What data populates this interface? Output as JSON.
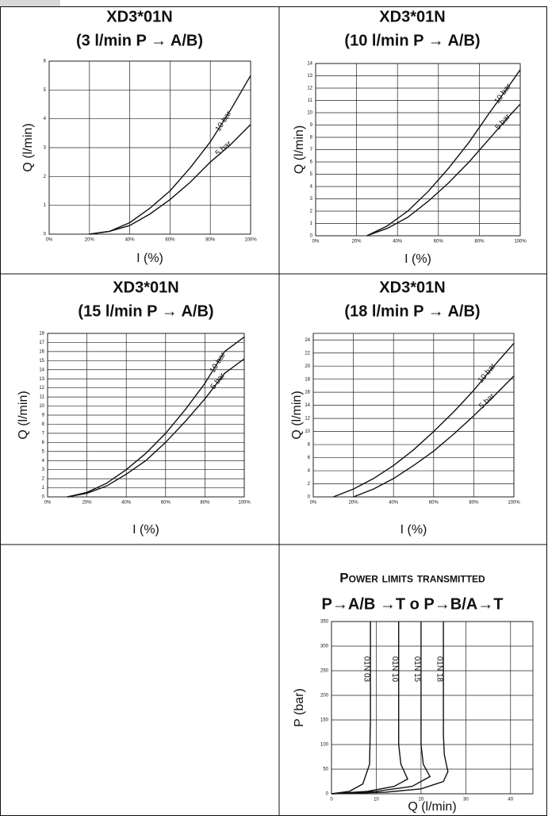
{
  "chart_data": [
    {
      "type": "line",
      "title": "XD3*01N",
      "subtitle": "(3 l/min P → A/B)",
      "x_label": "I (%)",
      "y_label": "Q (l/min)",
      "xlim": [
        0,
        100
      ],
      "ylim": [
        0,
        6
      ],
      "xticks": [
        {
          "value": 0,
          "label": "0%"
        },
        {
          "value": 20,
          "label": "20%"
        },
        {
          "value": 40,
          "label": "40%"
        },
        {
          "value": 60,
          "label": "60%"
        },
        {
          "value": 80,
          "label": "80%"
        },
        {
          "value": 100,
          "label": "100%"
        }
      ],
      "yticks": [
        0,
        1,
        2,
        3,
        4,
        5,
        6
      ],
      "grid": true,
      "series": [
        {
          "name": "10 bar",
          "color": "#111111",
          "x": [
            20,
            30,
            40,
            50,
            60,
            70,
            80,
            90,
            100
          ],
          "values": [
            0,
            0.1,
            0.4,
            0.9,
            1.5,
            2.3,
            3.2,
            4.3,
            5.5
          ]
        },
        {
          "name": "5 bar",
          "color": "#111111",
          "x": [
            20,
            30,
            40,
            50,
            60,
            70,
            80,
            90,
            100
          ],
          "values": [
            0,
            0.1,
            0.3,
            0.7,
            1.2,
            1.8,
            2.5,
            3.1,
            3.8
          ]
        }
      ]
    },
    {
      "type": "line",
      "title": "XD3*01N",
      "subtitle": "(10 l/min P → A/B)",
      "x_label": "I (%)",
      "y_label": "Q (l/min)",
      "xlim": [
        0,
        100
      ],
      "ylim": [
        0,
        14
      ],
      "xticks": [
        {
          "value": 0,
          "label": "0%"
        },
        {
          "value": 20,
          "label": "20%"
        },
        {
          "value": 40,
          "label": "40%"
        },
        {
          "value": 60,
          "label": "60%"
        },
        {
          "value": 80,
          "label": "80%"
        },
        {
          "value": 100,
          "label": "100%"
        }
      ],
      "yticks": [
        0,
        1,
        2,
        3,
        4,
        5,
        6,
        7,
        8,
        9,
        10,
        11,
        12,
        13,
        14
      ],
      "grid": true,
      "series": [
        {
          "name": "10 bar",
          "color": "#111111",
          "x": [
            25,
            35,
            45,
            55,
            65,
            75,
            85,
            95,
            100
          ],
          "values": [
            0,
            0.8,
            2,
            3.6,
            5.5,
            7.6,
            10,
            12.3,
            13.5
          ]
        },
        {
          "name": "5 bar",
          "color": "#111111",
          "x": [
            25,
            35,
            45,
            55,
            65,
            75,
            85,
            95,
            100
          ],
          "values": [
            0,
            0.6,
            1.5,
            2.8,
            4.3,
            6,
            7.9,
            9.8,
            10.7
          ]
        }
      ]
    },
    {
      "type": "line",
      "title": "XD3*01N",
      "subtitle": "(15 l/min P → A/B)",
      "x_label": "I (%)",
      "y_label": "Q (l/min)",
      "xlim": [
        0,
        100
      ],
      "ylim": [
        0,
        18
      ],
      "xticks": [
        {
          "value": 0,
          "label": "0%"
        },
        {
          "value": 20,
          "label": "20%"
        },
        {
          "value": 40,
          "label": "40%"
        },
        {
          "value": 60,
          "label": "60%"
        },
        {
          "value": 80,
          "label": "80%"
        },
        {
          "value": 100,
          "label": "100%"
        }
      ],
      "yticks": [
        0,
        1,
        2,
        3,
        4,
        5,
        6,
        7,
        8,
        9,
        10,
        11,
        12,
        13,
        14,
        15,
        16,
        17,
        18
      ],
      "grid": true,
      "series": [
        {
          "name": "10 bar",
          "color": "#111111",
          "x": [
            10,
            20,
            30,
            40,
            50,
            60,
            70,
            80,
            90,
            100
          ],
          "values": [
            0,
            0.5,
            1.5,
            3,
            4.8,
            7,
            9.6,
            12.5,
            16,
            17.6
          ]
        },
        {
          "name": "5 bar",
          "color": "#111111",
          "x": [
            10,
            20,
            30,
            40,
            50,
            60,
            70,
            80,
            90,
            100
          ],
          "values": [
            0,
            0.4,
            1.2,
            2.5,
            4,
            6,
            8.3,
            10.8,
            13.6,
            15.2
          ]
        }
      ]
    },
    {
      "type": "line",
      "title": "XD3*01N",
      "subtitle": "(18 l/min P → A/B)",
      "x_label": "I (%)",
      "y_label": "Q (l/min)",
      "xlim": [
        0,
        100
      ],
      "ylim": [
        0,
        25
      ],
      "xticks": [
        {
          "value": 0,
          "label": "0%"
        },
        {
          "value": 20,
          "label": "20%"
        },
        {
          "value": 40,
          "label": "40%"
        },
        {
          "value": 60,
          "label": "60%"
        },
        {
          "value": 80,
          "label": "80%"
        },
        {
          "value": 100,
          "label": "100%"
        }
      ],
      "yticks": [
        0,
        2,
        4,
        6,
        8,
        10,
        12,
        14,
        16,
        18,
        20,
        22,
        24
      ],
      "grid": true,
      "series": [
        {
          "name": "10 bar",
          "color": "#111111",
          "x": [
            10,
            20,
            30,
            40,
            50,
            60,
            70,
            80,
            90,
            100
          ],
          "values": [
            0,
            1.2,
            2.8,
            4.8,
            7.2,
            10,
            13,
            16.3,
            20,
            23.5
          ]
        },
        {
          "name": "5 bar",
          "color": "#111111",
          "x": [
            20,
            30,
            40,
            50,
            60,
            70,
            80,
            90,
            100
          ],
          "values": [
            0,
            1.2,
            2.8,
            4.8,
            7,
            9.6,
            12.4,
            15.4,
            18.5
          ]
        }
      ]
    },
    {
      "type": "line",
      "title": "Power limits transmitted",
      "subtitle": "P→A/B →T  o  P→B/A→T",
      "x_label": "Q (l/min)",
      "y_label": "P (bar)",
      "xlim": [
        0,
        45
      ],
      "ylim": [
        0,
        350
      ],
      "xticks": [
        0,
        10,
        20,
        30,
        40
      ],
      "yticks": [
        0,
        50,
        100,
        150,
        200,
        250,
        300,
        350
      ],
      "grid": true,
      "series": [
        {
          "name": "01N 03",
          "color": "#111111",
          "x": [
            0,
            4,
            7,
            8.5,
            8.7,
            8.7
          ],
          "values": [
            0,
            5,
            20,
            60,
            150,
            350
          ]
        },
        {
          "name": "01N 10",
          "color": "#111111",
          "x": [
            0,
            8,
            14,
            17,
            15.5,
            15,
            15
          ],
          "values": [
            0,
            5,
            15,
            30,
            60,
            100,
            350
          ]
        },
        {
          "name": "01N 15",
          "color": "#111111",
          "x": [
            0,
            10,
            18,
            22,
            20.5,
            20,
            20
          ],
          "values": [
            0,
            5,
            15,
            35,
            60,
            100,
            350
          ]
        },
        {
          "name": "01N 18",
          "color": "#111111",
          "x": [
            0,
            12,
            20,
            25,
            26,
            25.2,
            25,
            25
          ],
          "values": [
            0,
            3,
            10,
            25,
            45,
            80,
            120,
            350
          ]
        }
      ]
    }
  ]
}
